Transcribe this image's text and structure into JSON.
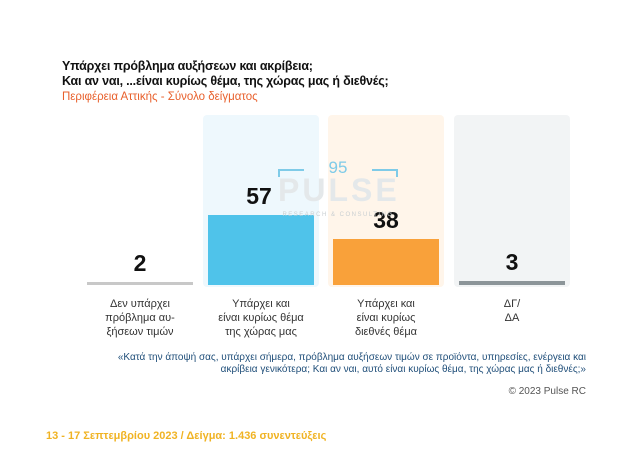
{
  "header": {
    "title_line1": "Υπάρχει πρόβλημα αυξήσεων και ακρίβεια;",
    "title_line2": "Και αν ναι, ...είναι κυρίως θέμα, της χώρας μας ή διεθνές;",
    "subtitle": "Περιφέρεια Αττικής - Σύνολο δείγματος"
  },
  "watermark": {
    "number": "95",
    "brand": "PULSE",
    "tagline": "RESEARCH & CONSULTING"
  },
  "chart_data": {
    "type": "bar",
    "categories": [
      "Δεν υπάρχει\nπρόβλημα αυ-\nξήσεων τιμών",
      "Υπάρχει και\nείναι κυρίως θέμα\nτης  χώρας μας",
      "Υπάρχει και\nείναι κυρίως\nδιεθνές θέμα",
      "ΔΓ/\nΔΑ"
    ],
    "values": [
      2,
      57,
      38,
      3
    ],
    "colors": [
      "#c8c8c8",
      "#4fc3ea",
      "#f9a13a",
      "#8c9599"
    ],
    "background_colors": [
      "#ffffff",
      "#eef8fd",
      "#fff5ea",
      "#f2f4f5"
    ],
    "ylim": [
      0,
      100
    ],
    "grid": false,
    "legend": "none"
  },
  "notes": {
    "question": "«Κατά την άποψή σας, υπάρχει σήμερα, πρόβλημα αυξήσεων τιμών σε προϊόντα, υπηρεσίες, ενέργεια και ακρίβεια γενικότερα; Και αν ναι, αυτό είναι κυρίως θέμα, της χώρας μας ή διεθνές;»",
    "copyright": "© 2023 Pulse RC",
    "footer": "13 - 17  Σεπτεμβρίου  2023  /  Δείγμα:  1.436 συνεντεύξεις"
  }
}
